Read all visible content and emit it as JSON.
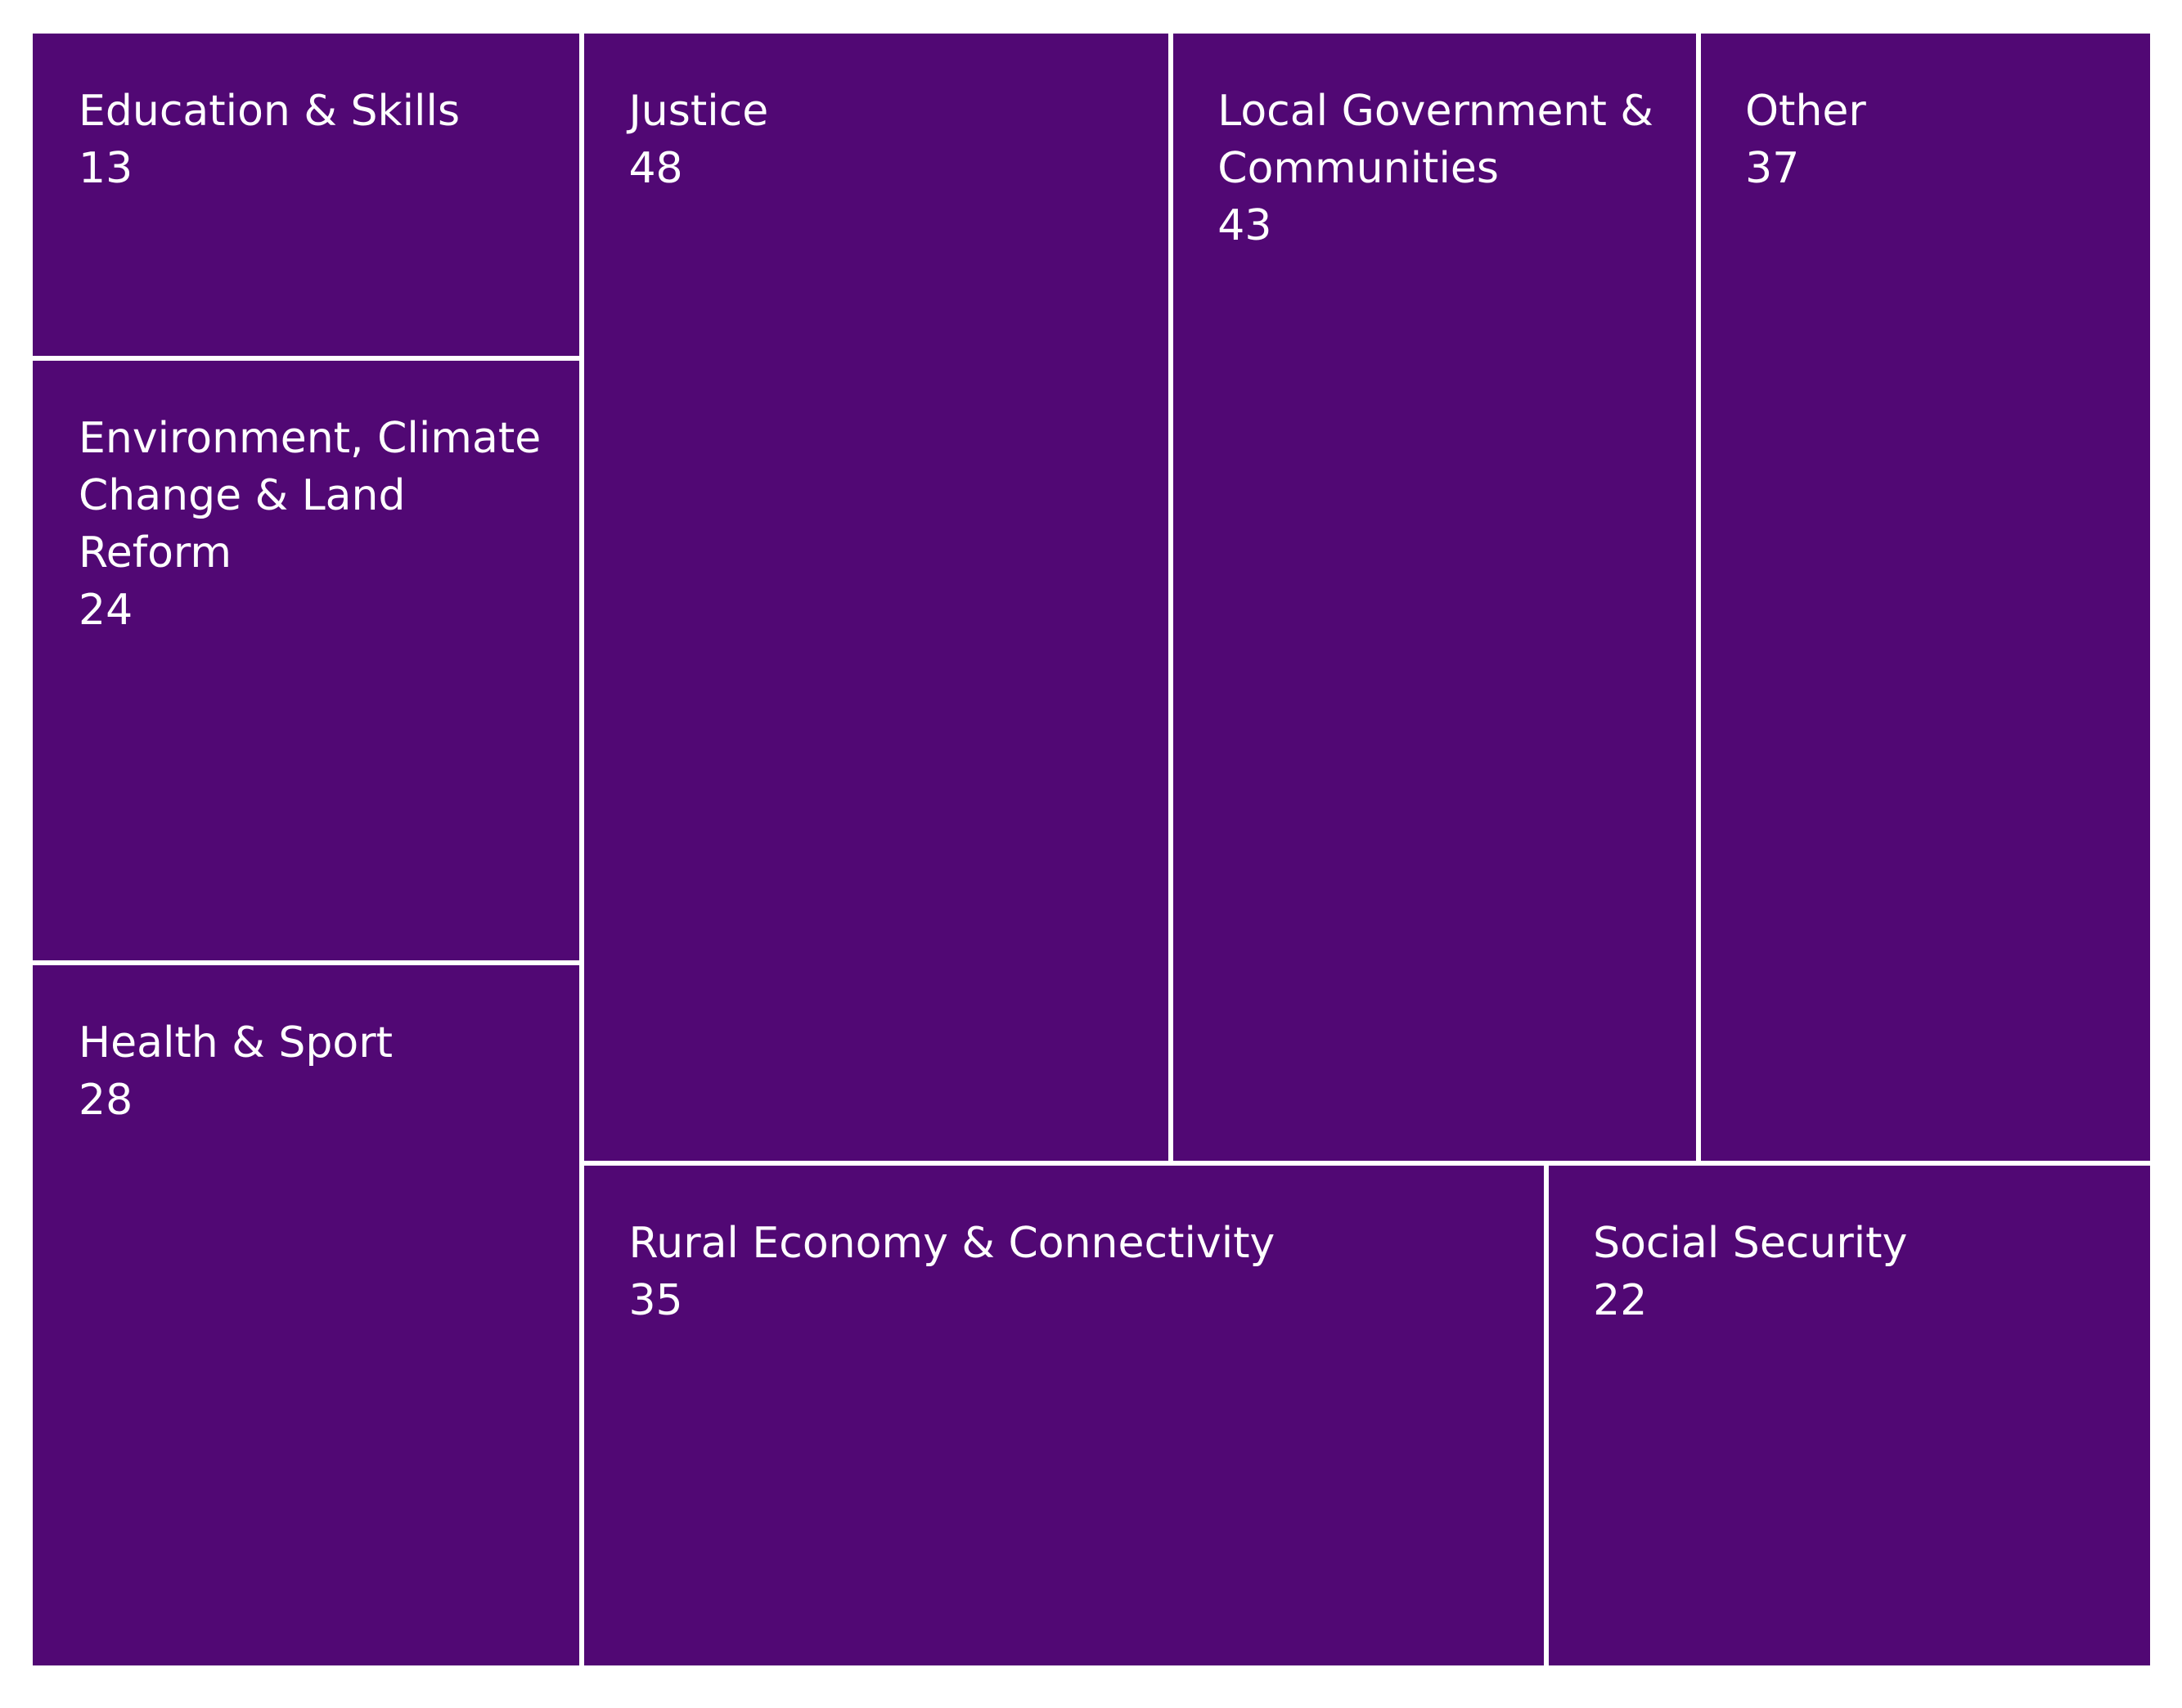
{
  "chart_data": {
    "type": "treemap",
    "title": "",
    "color": "#510874",
    "border_color": "#ffffff",
    "label_color": "#ffffff",
    "items": [
      {
        "label": "Education & Skills",
        "value": 13
      },
      {
        "label": "Environment, Climate\nChange & Land Reform",
        "value": 24
      },
      {
        "label": "Health & Sport",
        "value": 28
      },
      {
        "label": "Justice",
        "value": 48
      },
      {
        "label": "Local Government &\nCommunities",
        "value": 43
      },
      {
        "label": "Other",
        "value": 37
      },
      {
        "label": "Rural Economy & Connectivity",
        "value": 35
      },
      {
        "label": "Social Security",
        "value": 22
      }
    ]
  }
}
